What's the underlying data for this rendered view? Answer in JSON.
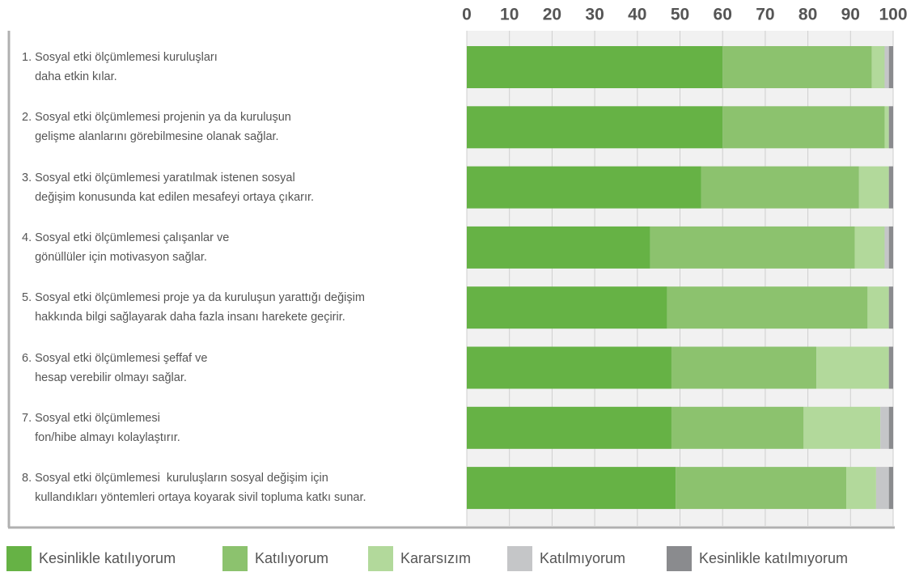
{
  "chart_data": {
    "type": "stacked_barh",
    "categories": [
      "1. Sosyal etki ölçümlemesi kuruluşları\n    daha etkin kılar.",
      "2. Sosyal etki ölçümlemesi projenin ya da kuruluşun\n    gelişme alanlarını görebilmesine olanak sağlar.",
      "3. Sosyal etki ölçümlemesi yaratılmak istenen sosyal\n    değişim konusunda kat edilen mesafeyi ortaya çıkarır.",
      "4. Sosyal etki ölçümlemesi çalışanlar ve\n    gönüllüler için motivasyon sağlar.",
      "5. Sosyal etki ölçümlemesi proje ya da kuruluşun yarattığı değişim\n    hakkında bilgi sağlayarak daha fazla insanı harekete geçirir.",
      "6. Sosyal etki ölçümlemesi şeffaf ve\n    hesap verebilir olmayı sağlar.",
      "7. Sosyal etki ölçümlemesi\n    fon/hibe almayı kolaylaştırır.",
      "8. Sosyal etki ölçümlemesi  kuruluşların sosyal değişim için\n    kullandıkları yöntemleri ortaya koyarak sivil topluma katkı sunar."
    ],
    "series": [
      {
        "name": "Kesinlikle katılıyorum",
        "color": "#66b245",
        "values": [
          60,
          60,
          55,
          43,
          47,
          48,
          48,
          49
        ]
      },
      {
        "name": "Katılıyorum",
        "color": "#8cc26e",
        "values": [
          35,
          38,
          37,
          48,
          47,
          34,
          31,
          40
        ]
      },
      {
        "name": "Kararsızım",
        "color": "#b2d99b",
        "values": [
          3,
          1,
          7,
          7,
          5,
          17,
          18,
          7
        ]
      },
      {
        "name": "Katılmıyorum",
        "color": "#c5c6c8",
        "values": [
          1,
          0,
          0,
          1,
          0,
          0,
          2,
          3
        ]
      },
      {
        "name": "Kesinlikle katılmıyorum",
        "color": "#8a8b8e",
        "values": [
          1,
          1,
          1,
          1,
          1,
          1,
          1,
          1
        ]
      }
    ],
    "xlim": [
      0,
      100
    ],
    "xticks": [
      0,
      10,
      20,
      30,
      40,
      50,
      60,
      70,
      80,
      90,
      100
    ],
    "grid": true
  }
}
